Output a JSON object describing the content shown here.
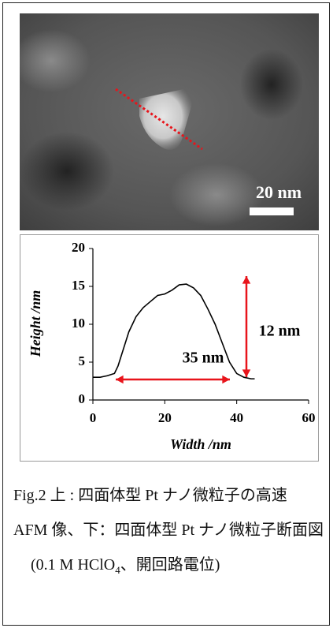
{
  "image": {
    "scale_bar_label": "20 nm"
  },
  "chart_data": {
    "type": "line",
    "xlabel": "Width /nm",
    "ylabel": "Height /nm",
    "x": [
      0,
      2,
      4,
      6,
      7,
      8,
      9,
      10,
      12,
      14,
      16,
      18,
      20,
      22,
      24,
      26,
      28,
      30,
      32,
      34,
      36,
      38,
      40,
      42,
      44,
      45
    ],
    "series": [
      {
        "color": "#000000",
        "values": [
          3.0,
          3.0,
          3.2,
          3.5,
          4.5,
          6,
          7.5,
          9,
          11,
          12.2,
          13,
          13.8,
          14,
          14.5,
          15.2,
          15.3,
          14.8,
          13.8,
          12,
          10,
          7.5,
          5,
          3.5,
          3.0,
          2.8,
          2.8
        ]
      }
    ],
    "xlim": [
      0,
      60
    ],
    "xticks": [
      0,
      20,
      40,
      60
    ],
    "ylim": [
      0,
      20
    ],
    "yticks": [
      0,
      5,
      10,
      15,
      20
    ],
    "annotations": [
      "35 nm",
      "12 nm"
    ],
    "annotation_color": "#e8141b"
  },
  "caption": {
    "text": "Fig.2 上 : 四面体型 Pt ナノ微粒子の高速 AFM 像、下：四面体型 Pt ナノ微粒子断面図",
    "conditions": [
      "(0.1 M HClO",
      "4",
      "、開回路電位)"
    ]
  }
}
